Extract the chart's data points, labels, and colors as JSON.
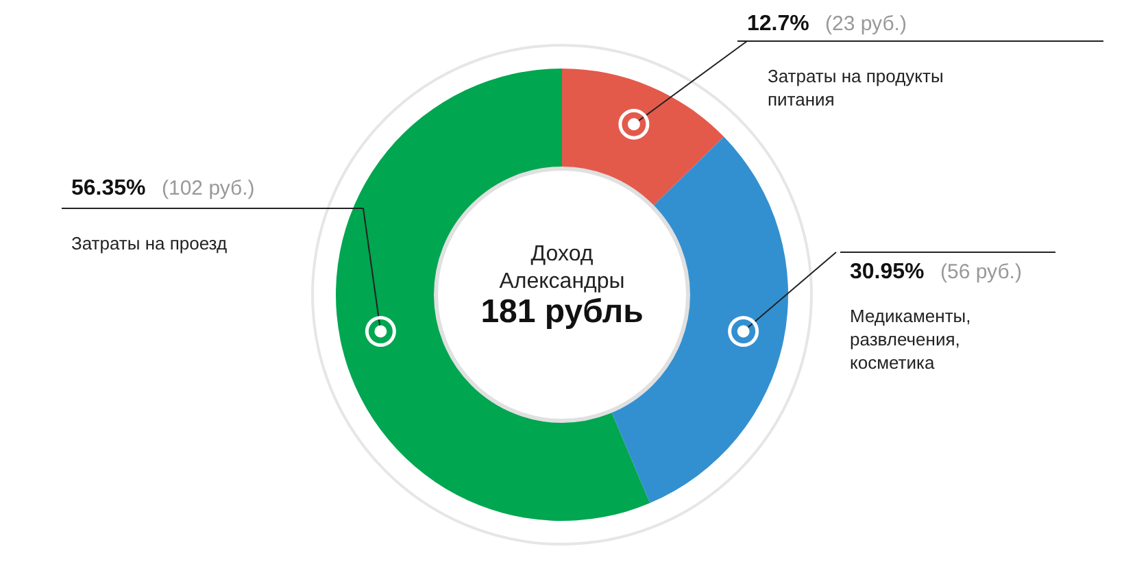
{
  "chart_data": {
    "type": "donut",
    "title": "Доход Александры",
    "subtitle": "181 рубль",
    "categories": [
      "Затраты на продукты питания",
      "Медикаменты, развлечения, косметика",
      "Затраты на проезд"
    ],
    "values": [
      12.7,
      30.95,
      56.35
    ],
    "colors": [
      "#e35a4b",
      "#3390d0",
      "#00a650"
    ],
    "value_labels": [
      "12.7%",
      "30.95%",
      "56.35%"
    ],
    "annotations": [
      "(23 руб.)",
      "(56 руб.)",
      "(102 руб.)"
    ]
  }
}
